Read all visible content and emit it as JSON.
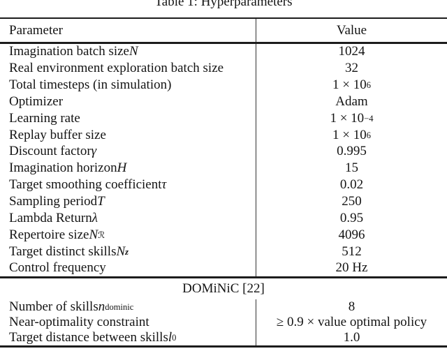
{
  "page": {
    "title": "Table 1: Hyperparameters"
  },
  "colors": {
    "text": "#141414",
    "rule": "#1c1c1c",
    "divider": "#333333",
    "background": "#ffffff"
  },
  "table": {
    "columns": {
      "param": "Parameter",
      "value": "Value"
    },
    "sections": [
      {
        "rows": [
          {
            "param": "Imagination batch size <i>N</i>",
            "value": "1024"
          },
          {
            "param": "Real environment exploration batch size",
            "value": "32"
          },
          {
            "param": "Total timesteps (in simulation)",
            "value": "1 × 10<sup>6</sup>"
          },
          {
            "param": "Optimizer",
            "value": "Adam"
          },
          {
            "param": "Learning rate",
            "value": "1 × 10<sup>−4</sup>"
          },
          {
            "param": "Replay buffer size",
            "value": "1 × 10<sup>6</sup>"
          },
          {
            "param": "Discount factor <i>γ</i>",
            "value": "0.995"
          },
          {
            "param": "Imagination horizon <i>H</i>",
            "value": "15"
          },
          {
            "param": "Target smoothing coefficient <i>τ</i>",
            "value": "0.02"
          },
          {
            "param": "Sampling period <i>T</i>",
            "value": "250"
          },
          {
            "param": "Lambda Return <i>λ</i>",
            "value": "0.95"
          },
          {
            "param": "Repertoire size <i>N</i><sub><span class=cal>ℛ</span></sub>",
            "value": "4096"
          },
          {
            "param": "Target distinct skills <i>N</i><sub><b><i>z</i></b></sub>",
            "value": "512"
          },
          {
            "param": "Control frequency",
            "value": "20 Hz"
          }
        ]
      },
      {
        "header": "DOMiNiC [22]",
        "rows": [
          {
            "param": "Number of skills <i>n</i><sub>dominic</sub>",
            "value": "8"
          },
          {
            "param": "Near-optimality constraint",
            "value": "≥ 0.9 × value optimal policy"
          },
          {
            "param": "Target distance between skills <i>l</i><sub>0</sub>",
            "value": "1.0"
          }
        ]
      }
    ]
  }
}
